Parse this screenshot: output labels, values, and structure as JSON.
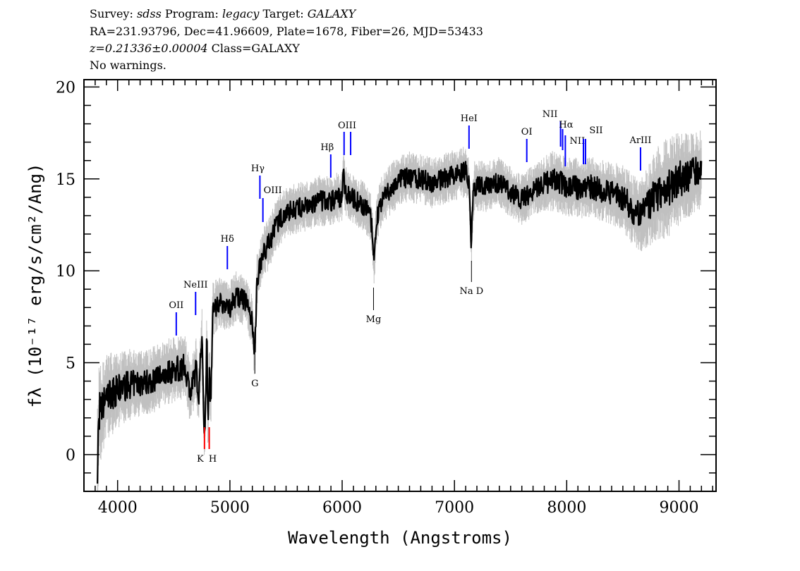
{
  "header": {
    "line1": {
      "survey_label": "Survey: ",
      "survey": "sdss",
      "program_label": " Program: ",
      "program": "legacy",
      "target_label": " Target: ",
      "target": "GALAXY"
    },
    "line2": "RA=231.93796, Dec=41.96609, Plate=1678, Fiber=26, MJD=53433",
    "line3": {
      "redshift": "z=0.21336±0.00004",
      "class": " Class=GALAXY"
    },
    "line4": "No warnings."
  },
  "chart_data": {
    "type": "line",
    "xlabel": "Wavelength (Angstroms)",
    "ylabel": "fλ (10⁻¹⁷ erg/s/cm²/Ang)",
    "xlim": [
      3700,
      9330
    ],
    "ylim": [
      -2,
      20.4
    ],
    "xticks": [
      "4000",
      "5000",
      "6000",
      "7000",
      "8000",
      "9000"
    ],
    "yticks": [
      "0",
      "5",
      "10",
      "15",
      "20"
    ],
    "grid": false,
    "colors": {
      "flux": "#000000",
      "error_band": "#c0c0c0",
      "emission": "#0000ff",
      "absorption": "#ff0000"
    },
    "redshift": 0.21336,
    "series": [
      {
        "x": [
          3820,
          3835,
          3850,
          3880,
          3900,
          3950,
          4000,
          4100,
          4200,
          4300,
          4400,
          4500,
          4550,
          4600,
          4650,
          4700,
          4720,
          4750,
          4770,
          4780,
          4795,
          4805,
          4818,
          4830,
          4845,
          4900,
          5000,
          5050,
          5100,
          5150,
          5200,
          5215,
          5225,
          5240,
          5270,
          5300,
          5350,
          5400,
          5450,
          5500,
          5600,
          5700,
          5800,
          5900,
          5950,
          6000,
          6010,
          6030,
          6100,
          6200,
          6250,
          6270,
          6285,
          6300,
          6330,
          6400,
          6500,
          6600,
          6700,
          6800,
          6900,
          7000,
          7050,
          7100,
          7130,
          7150,
          7165,
          7180,
          7200,
          7300,
          7400,
          7500,
          7600,
          7650,
          7700,
          7800,
          7900,
          8000,
          8100,
          8200,
          8300,
          8400,
          8500,
          8600,
          8650,
          8700,
          8800,
          8900,
          9000,
          9100,
          9200
        ],
        "flux": [
          -1,
          2.5,
          2.2,
          2.8,
          3.2,
          3.3,
          3.5,
          3.8,
          3.9,
          4.0,
          4.4,
          4.6,
          4.7,
          4.8,
          3.3,
          4.7,
          3.0,
          6.5,
          1.5,
          2.0,
          6.5,
          1.5,
          5.0,
          2.2,
          7.8,
          8.3,
          8.0,
          8.6,
          8.5,
          8.3,
          7.2,
          5.5,
          6.0,
          9.5,
          10.3,
          11.0,
          11.5,
          12.3,
          12.8,
          13.2,
          13.4,
          13.5,
          13.8,
          13.8,
          14.0,
          14.0,
          15.3,
          14.3,
          13.9,
          13.5,
          13.0,
          12.0,
          10.0,
          12.5,
          13.5,
          14.2,
          14.9,
          15.1,
          15.0,
          14.8,
          15.0,
          15.2,
          15.3,
          15.4,
          14.8,
          11.5,
          13.8,
          14.6,
          14.6,
          14.6,
          14.8,
          14.3,
          13.9,
          14.1,
          14.4,
          14.8,
          14.9,
          14.6,
          14.5,
          14.6,
          14.4,
          14.2,
          14.0,
          13.2,
          13.0,
          13.3,
          14.2,
          14.5,
          15.0,
          15.2,
          15.5
        ],
        "error": [
          2.5,
          2.2,
          2.0,
          1.8,
          1.7,
          1.6,
          1.5,
          1.4,
          1.3,
          1.3,
          1.3,
          1.3,
          1.3,
          1.2,
          1.2,
          1.2,
          1.2,
          1.2,
          1.2,
          1.2,
          1.2,
          1.2,
          1.1,
          1.1,
          1.1,
          1.0,
          1.0,
          1.0,
          1.0,
          1.0,
          1.0,
          1.0,
          1.0,
          1.0,
          1.0,
          1.0,
          1.0,
          1.0,
          1.0,
          1.0,
          1.0,
          1.0,
          1.0,
          1.0,
          1.0,
          1.0,
          1.0,
          1.0,
          1.0,
          1.0,
          1.0,
          1.0,
          1.0,
          1.0,
          1.0,
          1.0,
          1.0,
          1.0,
          1.0,
          1.0,
          1.0,
          1.0,
          1.0,
          1.0,
          1.0,
          1.0,
          1.0,
          1.0,
          1.0,
          1.0,
          1.0,
          1.0,
          1.0,
          1.0,
          1.0,
          1.1,
          1.2,
          1.2,
          1.2,
          1.2,
          1.2,
          1.2,
          1.3,
          1.4,
          1.4,
          1.6,
          1.8,
          2.0,
          1.8,
          1.6,
          1.6
        ]
      }
    ],
    "emission_lines": [
      {
        "label": "OII",
        "rest": 3727
      },
      {
        "label": "NeIII",
        "rest": 3869
      },
      {
        "label": "Hδ",
        "rest": 4102
      },
      {
        "label": "Hγ",
        "rest": 4341
      },
      {
        "label": "OIII",
        "rest": 4363
      },
      {
        "label": "Hβ",
        "rest": 4861
      },
      {
        "label": "",
        "rest": 4959
      },
      {
        "label": "OIII",
        "rest": 5007
      },
      {
        "label": "HeI",
        "rest": 5876
      },
      {
        "label": "OI",
        "rest": 6300
      },
      {
        "label": "NII",
        "rest": 6548
      },
      {
        "label": "Hα",
        "rest": 6563
      },
      {
        "label": "NII",
        "rest": 6583
      },
      {
        "label": "",
        "rest": 6716
      },
      {
        "label": "SII",
        "rest": 6731
      },
      {
        "label": "ArIII",
        "rest": 7135
      }
    ],
    "absorption_lines": [
      {
        "label": "K",
        "rest": 3934
      },
      {
        "label": "H",
        "rest": 3969
      },
      {
        "label": "G",
        "rest": 4304
      },
      {
        "label": "Mg",
        "rest": 5175
      },
      {
        "label": "Na D",
        "rest": 5894
      }
    ]
  }
}
